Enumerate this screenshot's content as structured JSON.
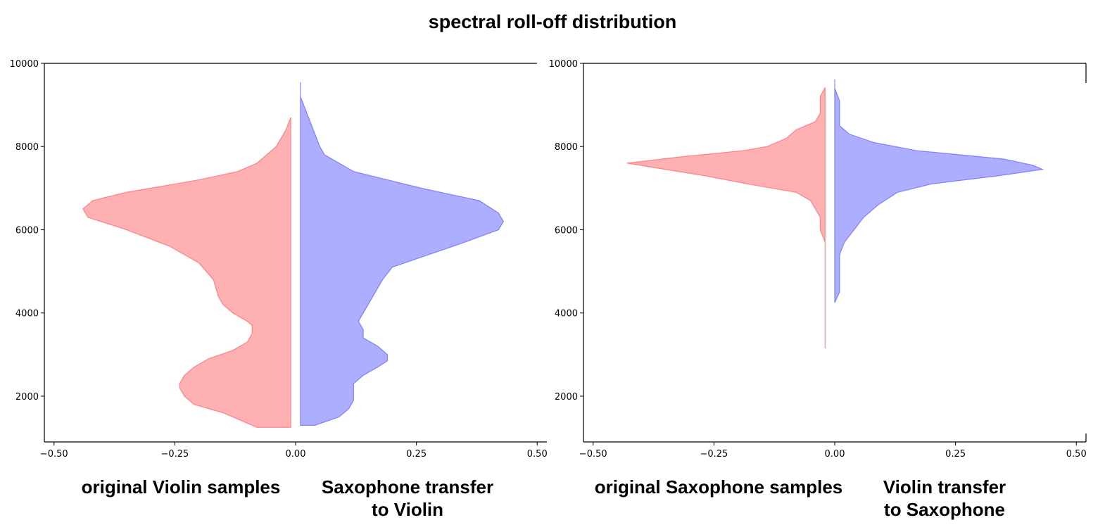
{
  "title": "spectral roll-off distribution",
  "colors": {
    "left": "#ff6f75",
    "right": "#6a6cff"
  },
  "chart_data": [
    {
      "type": "violin",
      "ylim": [
        900,
        10000
      ],
      "xlim": [
        -0.52,
        0.52
      ],
      "yticks": [
        2000,
        4000,
        6000,
        8000,
        10000
      ],
      "ytick_labels": [
        "2000",
        "4000",
        "6000",
        "8000",
        "10000"
      ],
      "xticks": [
        -0.5,
        -0.25,
        0.0,
        0.25,
        0.5
      ],
      "xtick_labels": [
        "−0.50",
        "−0.25",
        "0.00",
        "0.25",
        "0.50"
      ],
      "left": {
        "label": "original Violin samples",
        "offset": -0.01,
        "profile": [
          [
            1250,
            0.07
          ],
          [
            1400,
            0.1
          ],
          [
            1600,
            0.14
          ],
          [
            1800,
            0.2
          ],
          [
            2000,
            0.22
          ],
          [
            2200,
            0.23
          ],
          [
            2300,
            0.23
          ],
          [
            2500,
            0.22
          ],
          [
            2700,
            0.2
          ],
          [
            2900,
            0.17
          ],
          [
            3100,
            0.12
          ],
          [
            3300,
            0.09
          ],
          [
            3500,
            0.08
          ],
          [
            3700,
            0.08
          ],
          [
            3800,
            0.09
          ],
          [
            4000,
            0.12
          ],
          [
            4200,
            0.14
          ],
          [
            4400,
            0.15
          ],
          [
            4800,
            0.16
          ],
          [
            5200,
            0.19
          ],
          [
            5600,
            0.25
          ],
          [
            6000,
            0.34
          ],
          [
            6300,
            0.42
          ],
          [
            6500,
            0.43
          ],
          [
            6700,
            0.41
          ],
          [
            6900,
            0.34
          ],
          [
            7200,
            0.19
          ],
          [
            7400,
            0.11
          ],
          [
            7600,
            0.07
          ],
          [
            7800,
            0.05
          ],
          [
            8000,
            0.03
          ],
          [
            8200,
            0.02
          ],
          [
            8400,
            0.01
          ],
          [
            8700,
            0.0
          ]
        ]
      },
      "right": {
        "label": "Saxophone transfer\nto Violin",
        "offset": 0.01,
        "profile": [
          [
            1300,
            0.03
          ],
          [
            1500,
            0.08
          ],
          [
            1700,
            0.1
          ],
          [
            1900,
            0.11
          ],
          [
            2100,
            0.11
          ],
          [
            2300,
            0.11
          ],
          [
            2500,
            0.13
          ],
          [
            2700,
            0.16
          ],
          [
            2850,
            0.18
          ],
          [
            3000,
            0.18
          ],
          [
            3200,
            0.16
          ],
          [
            3400,
            0.13
          ],
          [
            3600,
            0.13
          ],
          [
            3800,
            0.12
          ],
          [
            4000,
            0.13
          ],
          [
            4400,
            0.15
          ],
          [
            4800,
            0.17
          ],
          [
            5100,
            0.19
          ],
          [
            5300,
            0.24
          ],
          [
            5700,
            0.34
          ],
          [
            6000,
            0.41
          ],
          [
            6200,
            0.42
          ],
          [
            6400,
            0.41
          ],
          [
            6700,
            0.37
          ],
          [
            7000,
            0.25
          ],
          [
            7200,
            0.18
          ],
          [
            7400,
            0.11
          ],
          [
            7600,
            0.08
          ],
          [
            7800,
            0.05
          ],
          [
            8000,
            0.04
          ],
          [
            8300,
            0.03
          ],
          [
            8600,
            0.02
          ],
          [
            8900,
            0.01
          ],
          [
            9200,
            0.0
          ],
          [
            9550,
            0.0
          ]
        ]
      }
    },
    {
      "type": "violin",
      "ylim": [
        900,
        10000
      ],
      "xlim": [
        -0.52,
        0.52
      ],
      "yticks": [
        2000,
        4000,
        6000,
        8000,
        10000
      ],
      "ytick_labels": [
        "2000",
        "4000",
        "6000",
        "8000",
        "10000"
      ],
      "xticks": [
        -0.5,
        -0.25,
        0.0,
        0.25,
        0.5
      ],
      "xtick_labels": [
        "−0.50",
        "−0.25",
        "0.00",
        "0.25",
        "0.50"
      ],
      "left": {
        "label": "original Saxophone samples",
        "offset": -0.02,
        "profile": [
          [
            3150,
            0.0
          ],
          [
            3800,
            0.0
          ],
          [
            4500,
            0.0
          ],
          [
            5200,
            0.0
          ],
          [
            5700,
            0.0
          ],
          [
            6000,
            0.01
          ],
          [
            6300,
            0.01
          ],
          [
            6500,
            0.02
          ],
          [
            6700,
            0.03
          ],
          [
            6900,
            0.06
          ],
          [
            7100,
            0.16
          ],
          [
            7300,
            0.25
          ],
          [
            7600,
            0.41
          ],
          [
            7750,
            0.3
          ],
          [
            7900,
            0.17
          ],
          [
            8000,
            0.12
          ],
          [
            8200,
            0.08
          ],
          [
            8400,
            0.06
          ],
          [
            8600,
            0.02
          ],
          [
            8800,
            0.01
          ],
          [
            9000,
            0.01
          ],
          [
            9200,
            0.01
          ],
          [
            9420,
            0.0
          ]
        ]
      },
      "right": {
        "label": "Violin transfer\nto Saxophone",
        "offset": 0.0,
        "profile": [
          [
            4250,
            0.0
          ],
          [
            4500,
            0.01
          ],
          [
            4800,
            0.01
          ],
          [
            5100,
            0.01
          ],
          [
            5400,
            0.01
          ],
          [
            5700,
            0.02
          ],
          [
            6000,
            0.04
          ],
          [
            6300,
            0.06
          ],
          [
            6600,
            0.09
          ],
          [
            6900,
            0.13
          ],
          [
            7100,
            0.2
          ],
          [
            7300,
            0.34
          ],
          [
            7450,
            0.43
          ],
          [
            7550,
            0.41
          ],
          [
            7700,
            0.35
          ],
          [
            7900,
            0.17
          ],
          [
            8100,
            0.08
          ],
          [
            8300,
            0.03
          ],
          [
            8500,
            0.01
          ],
          [
            8800,
            0.01
          ],
          [
            9100,
            0.01
          ],
          [
            9400,
            0.0
          ],
          [
            9620,
            0.0
          ]
        ]
      }
    }
  ]
}
